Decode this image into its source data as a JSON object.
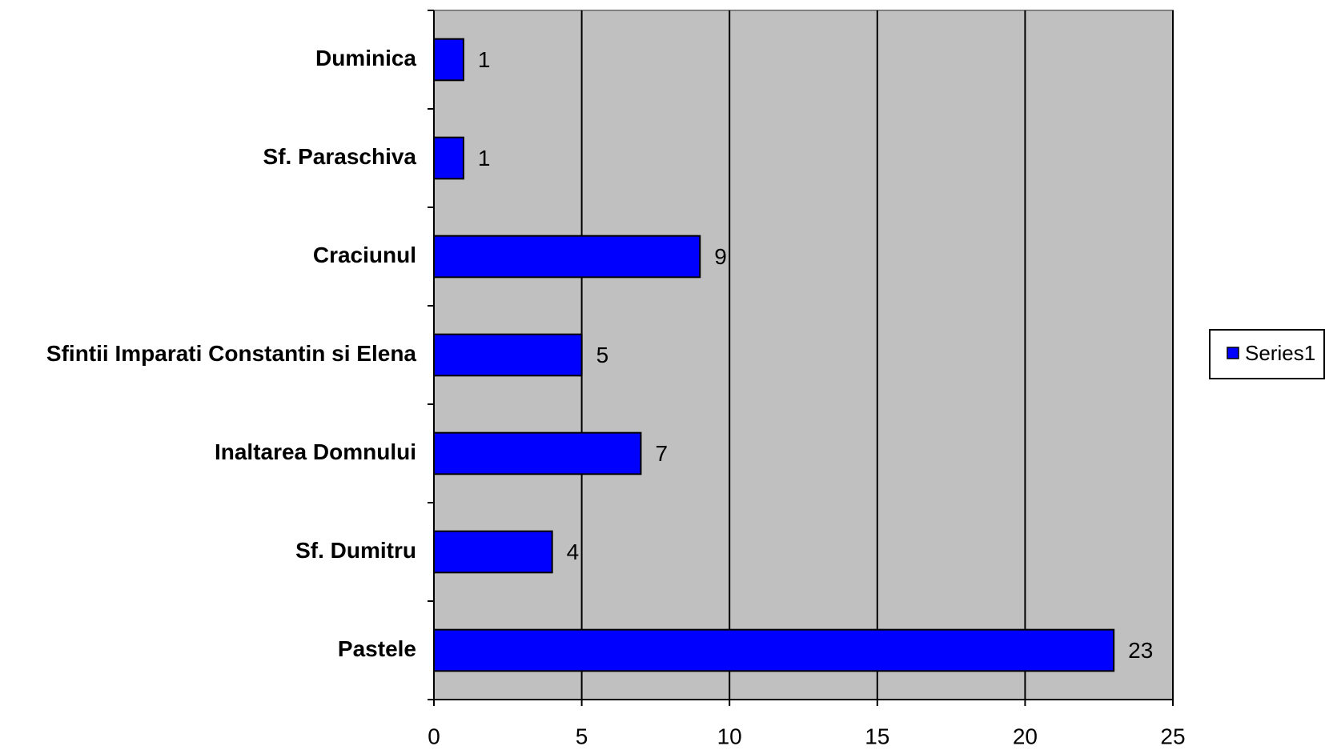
{
  "chart_data": {
    "type": "bar",
    "orientation": "horizontal",
    "categories": [
      "Duminica",
      "Sf. Paraschiva",
      "Craciunul",
      "Sfintii Imparati Constantin si Elena",
      "Inaltarea Domnului",
      "Sf. Dumitru",
      "Pastele"
    ],
    "series": [
      {
        "name": "Series1",
        "color": "#0000ff",
        "values": [
          1,
          1,
          9,
          5,
          7,
          4,
          23
        ]
      }
    ],
    "xlim": [
      0,
      25
    ],
    "xticks": [
      0,
      5,
      10,
      15,
      20,
      25
    ],
    "grid": true,
    "legend": "right",
    "plot_background": "#c0c0c0"
  }
}
